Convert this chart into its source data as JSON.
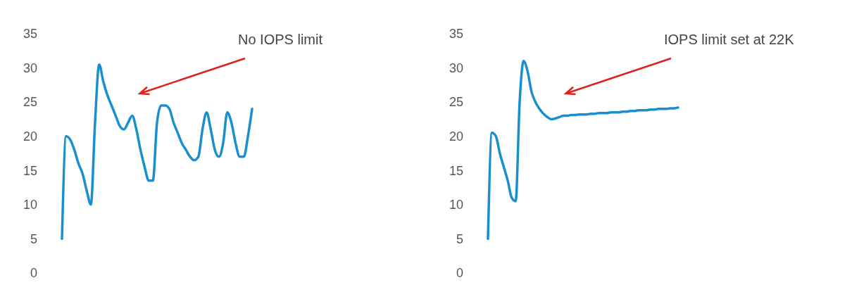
{
  "chart_data": [
    {
      "type": "line",
      "annotations": [
        "No IOPS limit"
      ],
      "ylim": [
        0,
        35
      ],
      "yticks": [
        0,
        5,
        10,
        15,
        20,
        25,
        30,
        35
      ],
      "tick_labels": "y",
      "grid": false,
      "categories": [
        null,
        null,
        null,
        null,
        null,
        null,
        null,
        null,
        null,
        null,
        null,
        null,
        null,
        null,
        null,
        null,
        null,
        null,
        null,
        null,
        null,
        null,
        null,
        null,
        null,
        null,
        null,
        null,
        null,
        null,
        null,
        null,
        null,
        null,
        null,
        null,
        null,
        null,
        null,
        null,
        null,
        null,
        null,
        null,
        null,
        null,
        null
      ],
      "series": [
        {
          "color": "#1a8fd0",
          "values": [
            5,
            20,
            19.5,
            18,
            16,
            14.5,
            12,
            10,
            22,
            30.5,
            28,
            26,
            24.5,
            23,
            21.5,
            21,
            22,
            23,
            21,
            18,
            15.5,
            13.5,
            13.5,
            22,
            24.5,
            24.5,
            24,
            22,
            20.5,
            19,
            18,
            17,
            16.5,
            17,
            21,
            23.5,
            21,
            18,
            17,
            19,
            23.5,
            22,
            19,
            17,
            17,
            20,
            24
          ]
        }
      ]
    },
    {
      "type": "line",
      "annotations": [
        "IOPS limit set at 22K"
      ],
      "ylim": [
        0,
        35
      ],
      "yticks": [
        0,
        5,
        10,
        15,
        20,
        25,
        30,
        35
      ],
      "tick_labels": "y",
      "grid": false,
      "categories": [
        null,
        null,
        null,
        null,
        null,
        null,
        null,
        null,
        null,
        null,
        null,
        null,
        null,
        null,
        null,
        null,
        null,
        null,
        null,
        null,
        null,
        null,
        null,
        null,
        null,
        null,
        null,
        null,
        null,
        null,
        null,
        null,
        null,
        null,
        null,
        null,
        null,
        null,
        null,
        null,
        null,
        null,
        null,
        null,
        null,
        null,
        null,
        null,
        null
      ],
      "series": [
        {
          "color": "#1a8fd0",
          "values": [
            5,
            20.5,
            20,
            17.5,
            15.5,
            13.5,
            11,
            10.5,
            25,
            31,
            29.5,
            26.5,
            25,
            24,
            23.3,
            22.8,
            22.5,
            22.6,
            22.8,
            23,
            23,
            23.1,
            23.1,
            23.2,
            23.2,
            23.2,
            23.3,
            23.3,
            23.4,
            23.4,
            23.4,
            23.5,
            23.5,
            23.5,
            23.6,
            23.6,
            23.7,
            23.7,
            23.8,
            23.8,
            23.8,
            23.9,
            23.9,
            24,
            24,
            24,
            24.1,
            24.1,
            24.2
          ]
        }
      ]
    }
  ]
}
